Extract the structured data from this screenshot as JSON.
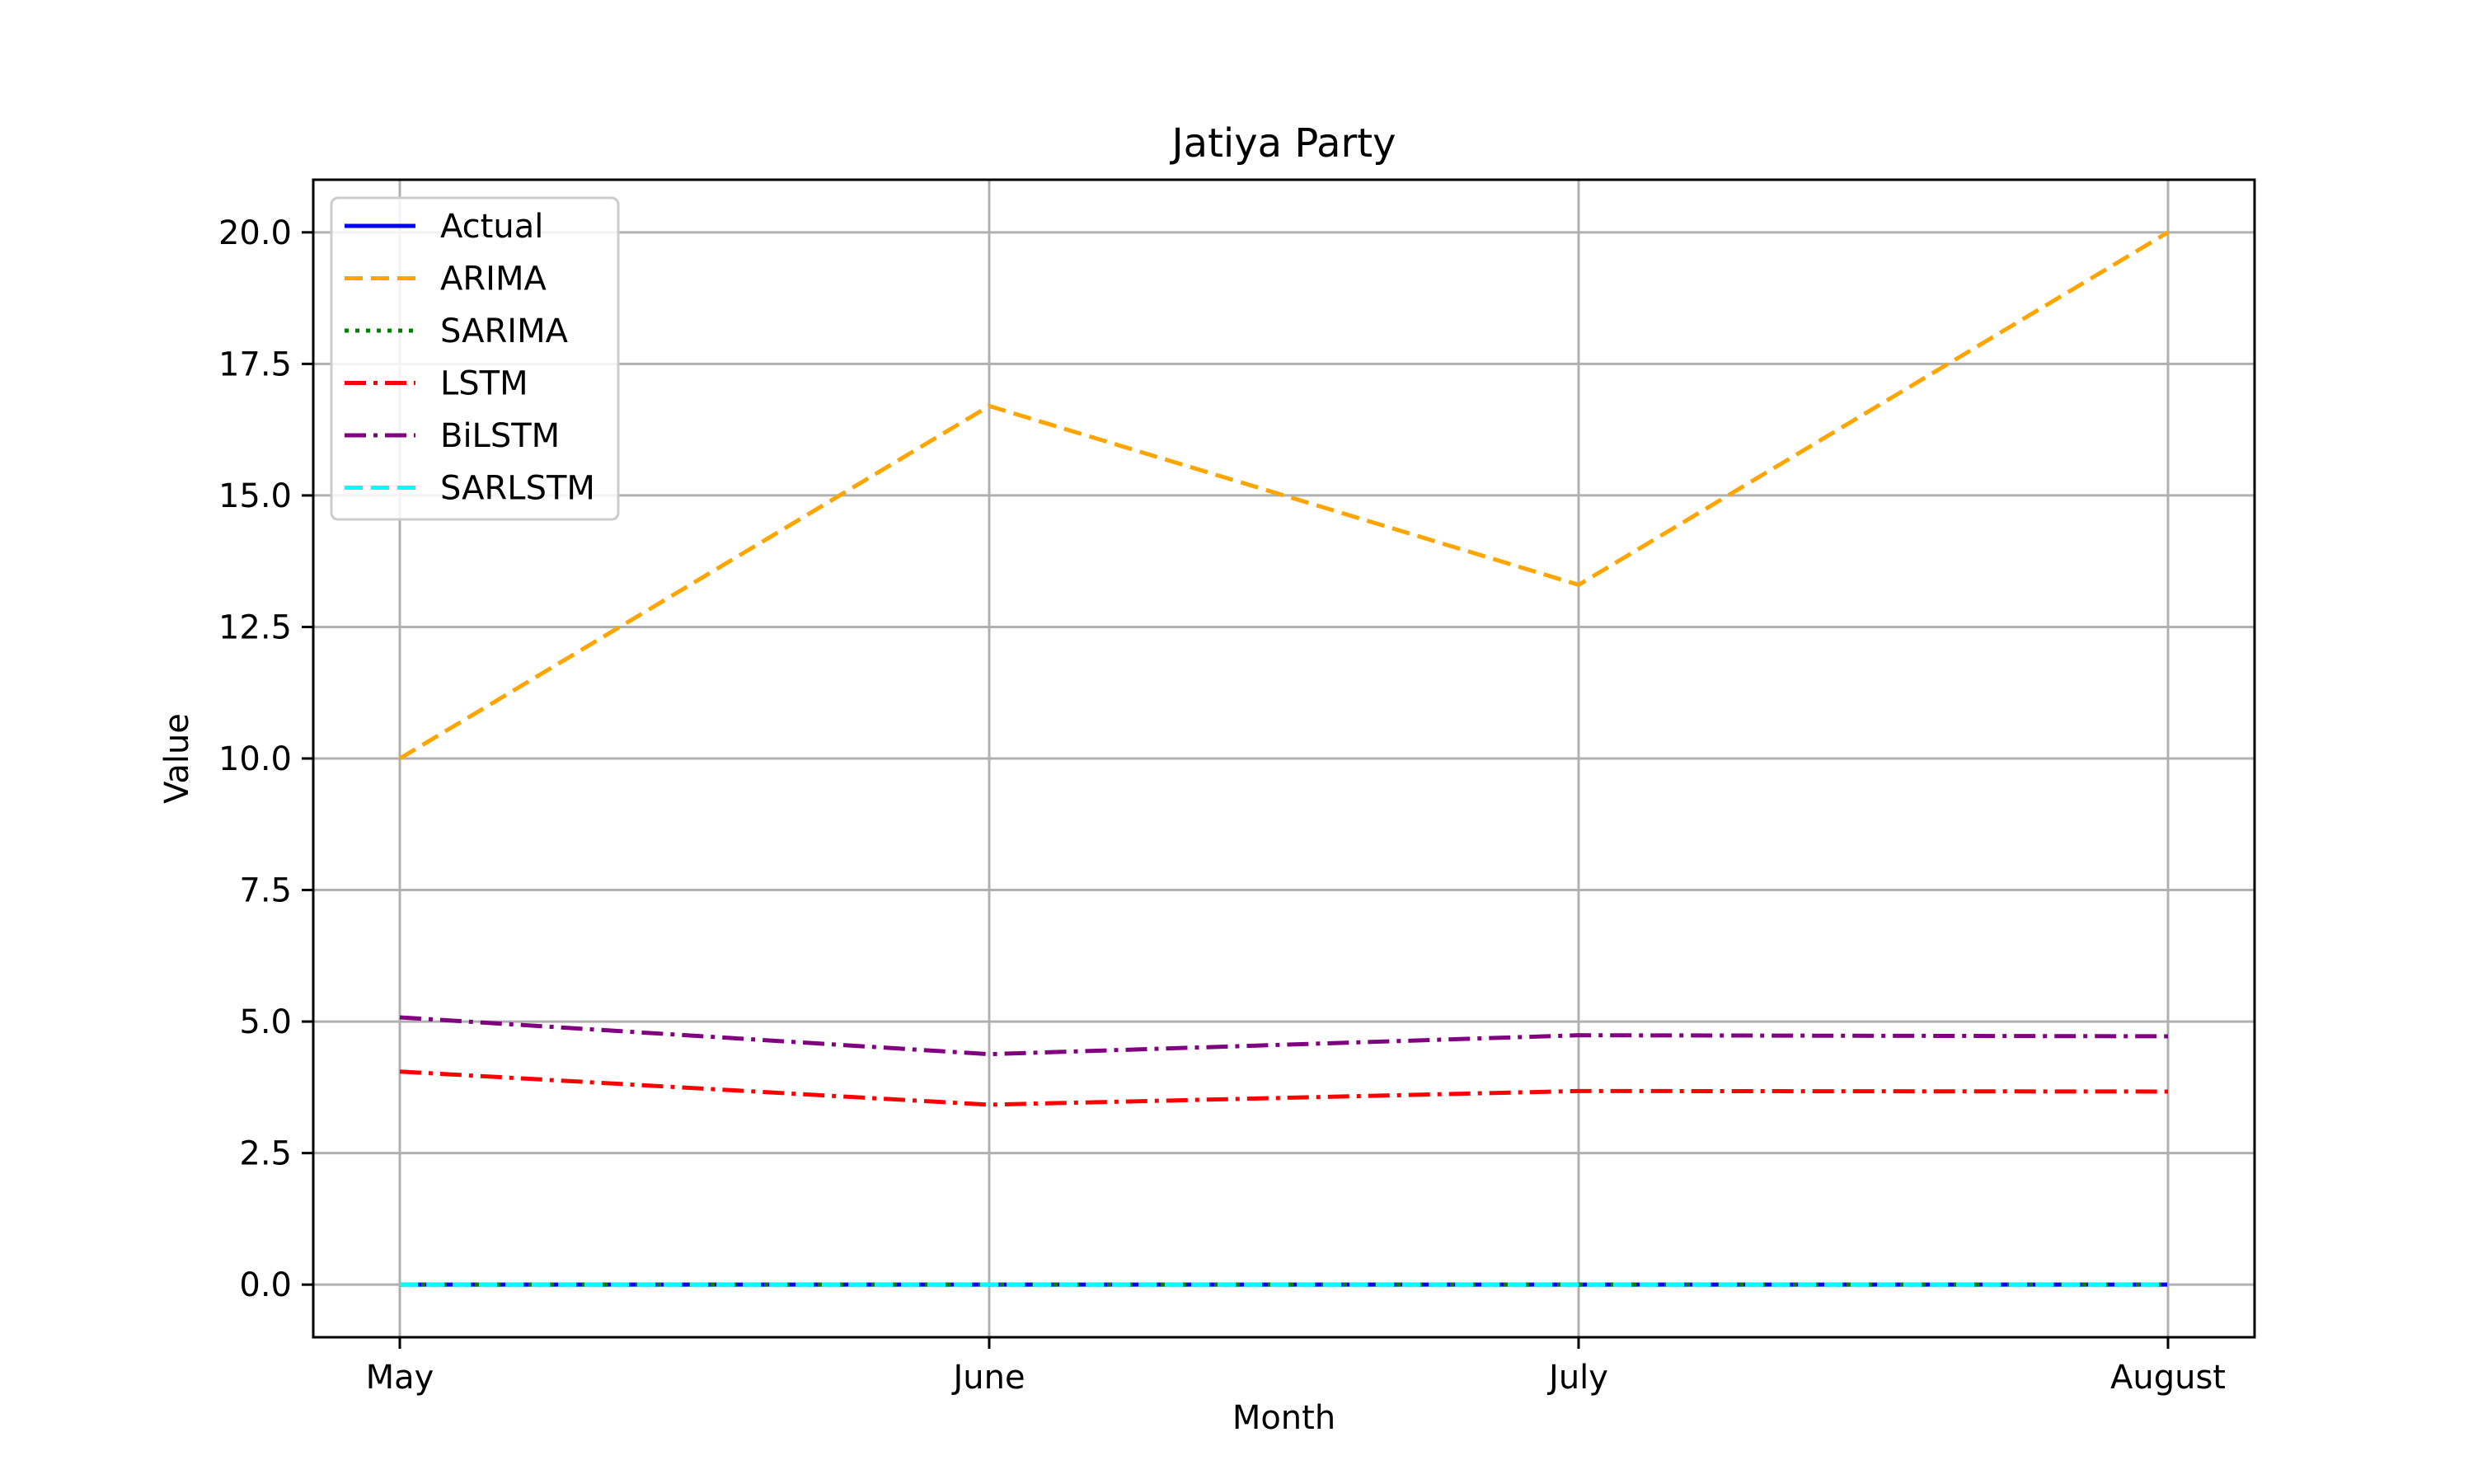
{
  "chart_data": {
    "type": "line",
    "title": "Jatiya Party",
    "xlabel": "Month",
    "ylabel": "Value",
    "categories": [
      "May",
      "June",
      "July",
      "August"
    ],
    "ylim": [
      -1.0,
      21.0
    ],
    "yticks": [
      0.0,
      2.5,
      5.0,
      7.5,
      10.0,
      12.5,
      15.0,
      17.5,
      20.0
    ],
    "ytick_labels": [
      "0.0",
      "2.5",
      "5.0",
      "7.5",
      "10.0",
      "12.5",
      "15.0",
      "17.5",
      "20.0"
    ],
    "grid": true,
    "legend_position": "top-left",
    "series": [
      {
        "name": "Actual",
        "values": [
          0.0,
          0.0,
          0.0,
          0.0
        ],
        "color": "#0000ff",
        "dash": "solid"
      },
      {
        "name": "ARIMA",
        "values": [
          10.0,
          16.7,
          13.3,
          20.0
        ],
        "color": "#ffa500",
        "dash": "dashed"
      },
      {
        "name": "SARIMA",
        "values": [
          0.0,
          0.0,
          0.0,
          0.0
        ],
        "color": "#008000",
        "dash": "dotted"
      },
      {
        "name": "LSTM",
        "values": [
          4.05,
          3.42,
          3.68,
          3.67
        ],
        "color": "#ff0000",
        "dash": "dashdot"
      },
      {
        "name": "BiLSTM",
        "values": [
          5.08,
          4.38,
          4.74,
          4.72
        ],
        "color": "#800080",
        "dash": "dashdot"
      },
      {
        "name": "SARLSTM",
        "values": [
          0.0,
          0.0,
          0.0,
          0.0
        ],
        "color": "#00ffff",
        "dash": "dashed"
      }
    ]
  }
}
